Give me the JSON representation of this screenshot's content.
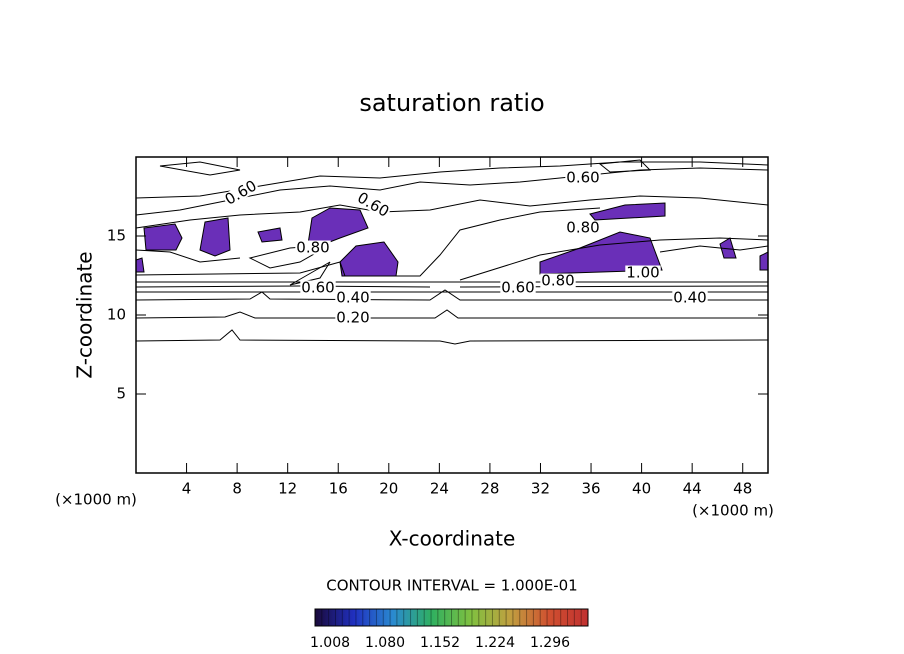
{
  "chart_data": {
    "type": "contour",
    "title": "saturation ratio",
    "x_label": "X-coordinate",
    "y_label": "Z-coordinate",
    "x_unit": "(×1000 m)",
    "y_unit": "(×1000 m)",
    "xlim": [
      0,
      50
    ],
    "xticks": [
      4,
      8,
      12,
      16,
      20,
      24,
      28,
      32,
      36,
      40,
      44,
      48
    ],
    "ylim": [
      0,
      20
    ],
    "yticks": [
      5,
      10,
      15
    ],
    "annotations": [
      "0.60",
      "0.60",
      "0.60",
      "0.80",
      "0.80",
      "0.60",
      "0.40",
      "0.20",
      "0.60",
      "0.80",
      "1.00",
      "0.40"
    ],
    "contour_interval": "CONTOUR INTERVAL = 1.000E-01",
    "colorbar": {
      "colors": [
        "#1a0a3a",
        "#2030c0",
        "#2a8ad0",
        "#30b060",
        "#80c040",
        "#c0a040",
        "#d05030",
        "#c03030"
      ],
      "ticks": [
        1.008,
        {
          "value": 1.08,
          "label": "1.080"
        },
        1.152,
        1.224,
        1.296
      ]
    }
  }
}
